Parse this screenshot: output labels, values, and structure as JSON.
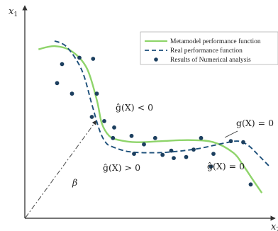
{
  "chart_data": {
    "type": "line",
    "title": "",
    "xlabel": "x",
    "xlabel_sub": "2",
    "ylabel": "x",
    "ylabel_sub": "1",
    "xlim": [
      0,
      10
    ],
    "ylim": [
      0,
      10
    ],
    "grid": false,
    "legend_position": "top-right",
    "series": [
      {
        "name": "Metamodel performance function",
        "style": "solid",
        "color": "#8ed46a",
        "x": [
          0.55,
          1.2,
          1.9,
          2.5,
          2.9,
          3.1,
          3.4,
          3.8,
          4.5,
          5.5,
          6.6,
          7.6,
          8.4,
          8.8,
          9.2,
          9.55
        ],
        "y": [
          8.0,
          8.15,
          7.9,
          7.1,
          5.6,
          4.5,
          3.9,
          3.7,
          3.6,
          3.65,
          3.7,
          3.6,
          3.1,
          2.5,
          1.8,
          1.2
        ]
      },
      {
        "name": "Real performance function",
        "style": "dashed",
        "color": "#1c4f7a",
        "x": [
          1.2,
          1.7,
          2.3,
          2.7,
          3.0,
          3.25,
          3.5,
          4.2,
          5.2,
          6.0,
          7.0,
          8.0,
          8.6,
          9.0,
          9.4,
          9.9
        ],
        "y": [
          8.4,
          8.1,
          7.0,
          5.4,
          4.2,
          3.6,
          3.4,
          3.15,
          3.1,
          3.15,
          3.3,
          3.55,
          3.65,
          3.45,
          3.0,
          2.4
        ]
      }
    ],
    "points": {
      "name": "Results of Numerical analysis",
      "color": "#1c3f5f",
      "x": [
        1.5,
        2.2,
        2.75,
        2.9,
        1.3,
        1.9,
        2.7,
        3.2,
        3.6,
        3.55,
        4.3,
        4.8,
        4.4,
        5.25,
        5.55,
        5.9,
        6.0,
        7.1,
        6.8,
        7.6,
        8.3,
        7.5,
        8.8,
        9.1,
        6.5
      ],
      "y": [
        7.3,
        7.6,
        7.55,
        5.9,
        6.4,
        5.9,
        4.8,
        4.6,
        4.3,
        3.8,
        3.9,
        3.5,
        3.05,
        3.8,
        3.0,
        3.2,
        2.85,
        3.8,
        3.25,
        3.05,
        3.65,
        2.45,
        3.6,
        1.6,
        2.9
      ]
    },
    "annotations": [
      {
        "text": "ĝ(X) < 0",
        "at": [
          3.9,
          5.2
        ]
      },
      {
        "text": "ĝ(X) > 0",
        "at": [
          3.7,
          2.4
        ]
      },
      {
        "text": "g(X) = 0",
        "at": [
          8.7,
          4.5
        ]
      },
      {
        "text": "ĝ(X) = 0",
        "at": [
          7.6,
          2.3
        ]
      },
      {
        "text": "β",
        "at": [
          2.1,
          1.6
        ]
      }
    ]
  }
}
